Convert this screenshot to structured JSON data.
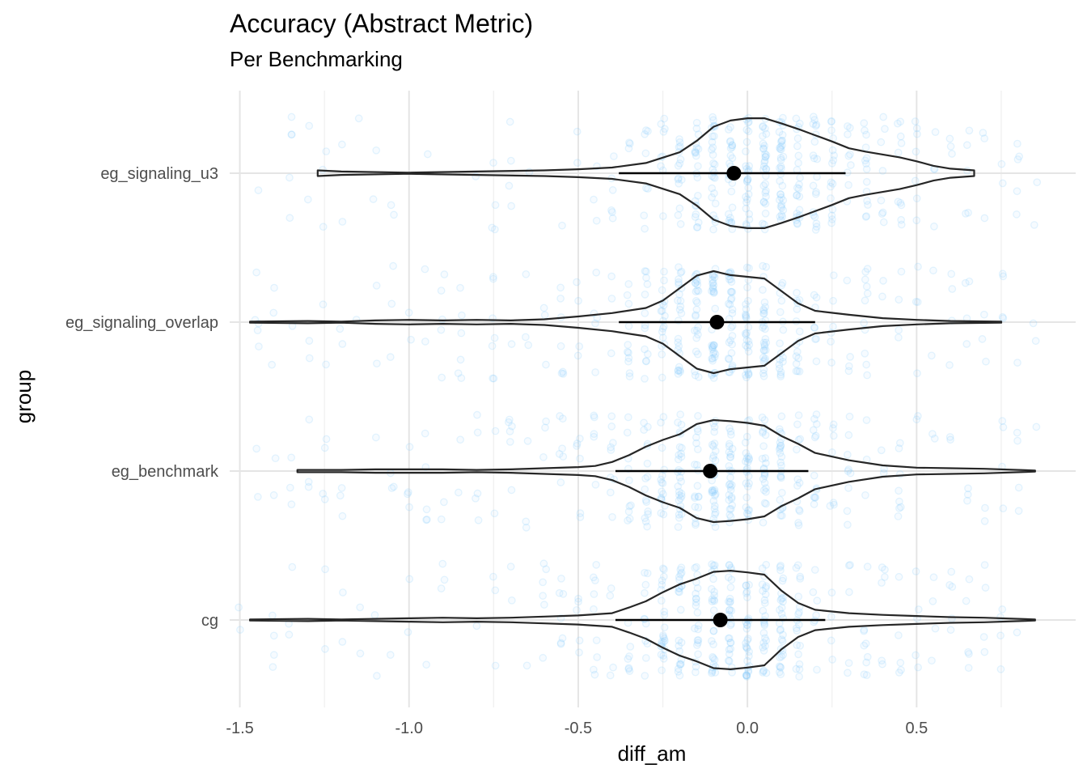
{
  "chart_data": {
    "type": "violin",
    "title": "Accuracy (Abstract Metric)",
    "subtitle": "Per Benchmarking",
    "xlabel": "diff_am",
    "ylabel": "group",
    "xlim": [
      -1.53,
      0.97
    ],
    "x_ticks": [
      {
        "value": -1.5,
        "label": "-1.5"
      },
      {
        "value": -1.0,
        "label": "-1.0"
      },
      {
        "value": -0.5,
        "label": "-0.5"
      },
      {
        "value": 0.0,
        "label": "0.0"
      },
      {
        "value": 0.5,
        "label": "0.5"
      }
    ],
    "x_minor_ticks": [
      -1.25,
      -0.75,
      -0.25,
      0.25,
      0.75
    ],
    "grid": true,
    "jitter_color": "#87CEFA",
    "categories": [
      "eg_signaling_u3",
      "eg_signaling_overlap",
      "eg_benchmark",
      "cg"
    ],
    "series": [
      {
        "category": "eg_signaling_u3",
        "mean": -0.04,
        "interval": [
          -0.38,
          0.29
        ],
        "range": [
          -1.27,
          0.67
        ],
        "violin_profile": [
          [
            -1.27,
            0.05
          ],
          [
            -1.2,
            0.03
          ],
          [
            -1.0,
            0.01
          ],
          [
            -0.8,
            0.03
          ],
          [
            -0.6,
            0.05
          ],
          [
            -0.5,
            0.07
          ],
          [
            -0.4,
            0.1
          ],
          [
            -0.3,
            0.18
          ],
          [
            -0.2,
            0.37
          ],
          [
            -0.15,
            0.57
          ],
          [
            -0.1,
            0.82
          ],
          [
            -0.05,
            0.93
          ],
          [
            0.0,
            0.97
          ],
          [
            0.05,
            0.97
          ],
          [
            0.1,
            0.88
          ],
          [
            0.15,
            0.78
          ],
          [
            0.2,
            0.67
          ],
          [
            0.25,
            0.56
          ],
          [
            0.3,
            0.44
          ],
          [
            0.35,
            0.38
          ],
          [
            0.4,
            0.33
          ],
          [
            0.45,
            0.28
          ],
          [
            0.5,
            0.21
          ],
          [
            0.55,
            0.13
          ],
          [
            0.6,
            0.08
          ],
          [
            0.67,
            0.05
          ]
        ]
      },
      {
        "category": "eg_signaling_overlap",
        "mean": -0.09,
        "interval": [
          -0.38,
          0.2
        ],
        "range": [
          -1.47,
          0.75
        ],
        "violin_profile": [
          [
            -1.47,
            0.01
          ],
          [
            -1.3,
            0.02
          ],
          [
            -1.2,
            0.01
          ],
          [
            -1.1,
            0.03
          ],
          [
            -1.0,
            0.04
          ],
          [
            -0.9,
            0.03
          ],
          [
            -0.8,
            0.04
          ],
          [
            -0.7,
            0.03
          ],
          [
            -0.6,
            0.05
          ],
          [
            -0.5,
            0.1
          ],
          [
            -0.4,
            0.16
          ],
          [
            -0.3,
            0.25
          ],
          [
            -0.25,
            0.38
          ],
          [
            -0.2,
            0.6
          ],
          [
            -0.15,
            0.82
          ],
          [
            -0.1,
            0.9
          ],
          [
            -0.05,
            0.83
          ],
          [
            0.0,
            0.8
          ],
          [
            0.05,
            0.77
          ],
          [
            0.1,
            0.55
          ],
          [
            0.15,
            0.33
          ],
          [
            0.2,
            0.2
          ],
          [
            0.3,
            0.13
          ],
          [
            0.4,
            0.07
          ],
          [
            0.5,
            0.04
          ],
          [
            0.6,
            0.02
          ],
          [
            0.75,
            0.01
          ]
        ]
      },
      {
        "category": "eg_benchmark",
        "mean": -0.11,
        "interval": [
          -0.39,
          0.18
        ],
        "range": [
          -1.33,
          0.85
        ],
        "violin_profile": [
          [
            -1.33,
            0.02
          ],
          [
            -1.2,
            0.02
          ],
          [
            -1.1,
            0.03
          ],
          [
            -1.0,
            0.03
          ],
          [
            -0.9,
            0.03
          ],
          [
            -0.8,
            0.02
          ],
          [
            -0.7,
            0.03
          ],
          [
            -0.6,
            0.05
          ],
          [
            -0.5,
            0.07
          ],
          [
            -0.45,
            0.09
          ],
          [
            -0.4,
            0.16
          ],
          [
            -0.35,
            0.28
          ],
          [
            -0.3,
            0.43
          ],
          [
            -0.25,
            0.55
          ],
          [
            -0.2,
            0.65
          ],
          [
            -0.15,
            0.83
          ],
          [
            -0.1,
            0.9
          ],
          [
            -0.05,
            0.88
          ],
          [
            0.0,
            0.85
          ],
          [
            0.05,
            0.8
          ],
          [
            0.1,
            0.62
          ],
          [
            0.15,
            0.48
          ],
          [
            0.2,
            0.32
          ],
          [
            0.3,
            0.19
          ],
          [
            0.4,
            0.1
          ],
          [
            0.5,
            0.06
          ],
          [
            0.6,
            0.05
          ],
          [
            0.7,
            0.04
          ],
          [
            0.85,
            0.01
          ]
        ]
      },
      {
        "category": "cg",
        "mean": -0.08,
        "interval": [
          -0.39,
          0.23
        ],
        "range": [
          -1.47,
          0.85
        ],
        "violin_profile": [
          [
            -1.47,
            0.01
          ],
          [
            -1.3,
            0.02
          ],
          [
            -1.2,
            0.01
          ],
          [
            -1.1,
            0.02
          ],
          [
            -1.0,
            0.03
          ],
          [
            -0.9,
            0.04
          ],
          [
            -0.8,
            0.03
          ],
          [
            -0.7,
            0.04
          ],
          [
            -0.6,
            0.06
          ],
          [
            -0.5,
            0.08
          ],
          [
            -0.4,
            0.12
          ],
          [
            -0.35,
            0.22
          ],
          [
            -0.3,
            0.33
          ],
          [
            -0.25,
            0.49
          ],
          [
            -0.2,
            0.63
          ],
          [
            -0.15,
            0.73
          ],
          [
            -0.1,
            0.85
          ],
          [
            -0.05,
            0.87
          ],
          [
            0.0,
            0.84
          ],
          [
            0.05,
            0.8
          ],
          [
            0.1,
            0.52
          ],
          [
            0.15,
            0.3
          ],
          [
            0.2,
            0.18
          ],
          [
            0.3,
            0.12
          ],
          [
            0.4,
            0.09
          ],
          [
            0.5,
            0.07
          ],
          [
            0.6,
            0.05
          ],
          [
            0.7,
            0.04
          ],
          [
            0.85,
            0.01
          ]
        ]
      }
    ]
  }
}
